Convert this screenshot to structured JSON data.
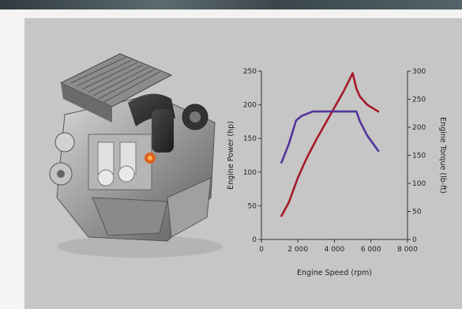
{
  "colors": {
    "panel": "#c6c6c6",
    "power_series": "#a5192a",
    "torque_series": "#52349a",
    "axis": "#333333"
  },
  "image": {
    "icon": "engine-cutaway-picture"
  },
  "chart_data": {
    "type": "line",
    "title": "",
    "xlabel": "Engine Speed (rpm)",
    "ylabel": "Engine Power (hp)",
    "y2label": "Engine Torque (lb-ft)",
    "xlim": [
      0,
      8000
    ],
    "ylim": [
      0,
      250
    ],
    "y2lim": [
      0,
      300
    ],
    "x_ticks": [
      "0",
      "2 000",
      "4 000",
      "6 000",
      "8 000"
    ],
    "y_ticks": [
      "0",
      "50",
      "100",
      "150",
      "200",
      "250"
    ],
    "y2_ticks": [
      "0",
      "50",
      "100",
      "150",
      "200",
      "250",
      "300"
    ],
    "grid": false,
    "legend": "none",
    "series": [
      {
        "axis": "left",
        "color": "#a5192a",
        "x": [
          1100,
          1500,
          2000,
          2500,
          3000,
          3500,
          4000,
          4500,
          5000,
          5200,
          5400,
          5800,
          6400
        ],
        "y": [
          35,
          55,
          92,
          122,
          148,
          172,
          196,
          220,
          247,
          224,
          212,
          200,
          190
        ]
      },
      {
        "axis": "right",
        "color": "#52349a",
        "x": [
          1100,
          1500,
          1900,
          2200,
          2800,
          3500,
          4200,
          5200,
          5400,
          5800,
          6400
        ],
        "y": [
          137,
          170,
          212,
          220,
          228,
          228,
          228,
          228,
          210,
          185,
          158
        ]
      }
    ]
  }
}
